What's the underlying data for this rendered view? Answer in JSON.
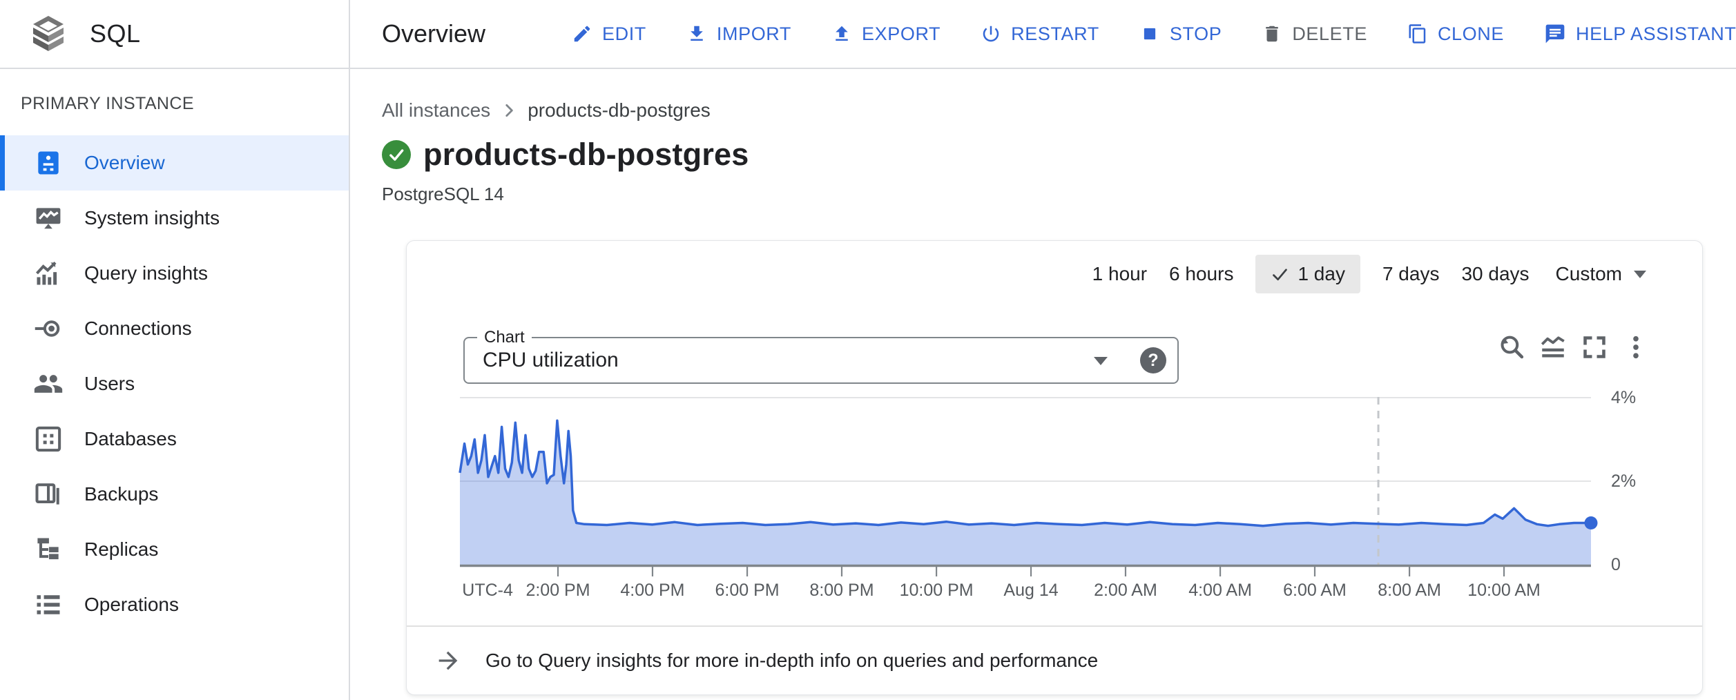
{
  "app": {
    "product": "SQL",
    "page_title": "Overview"
  },
  "topbar": {
    "accent_color": "#3367D6",
    "actions": [
      {
        "label": "EDIT",
        "icon": "pencil-icon"
      },
      {
        "label": "IMPORT",
        "icon": "import-icon"
      },
      {
        "label": "EXPORT",
        "icon": "export-icon"
      },
      {
        "label": "RESTART",
        "icon": "power-icon"
      },
      {
        "label": "STOP",
        "icon": "stop-icon"
      },
      {
        "label": "DELETE",
        "icon": "trash-icon",
        "disabled": true
      },
      {
        "label": "CLONE",
        "icon": "clone-icon"
      },
      {
        "label": "HELP ASSISTANT",
        "icon": "chat-icon"
      }
    ]
  },
  "sidebar": {
    "section_label": "PRIMARY INSTANCE",
    "selected_bg": "#E8F0FE",
    "selected_color": "#1967D2",
    "items": [
      {
        "label": "Overview",
        "icon": "instance-overview-icon",
        "selected": true
      },
      {
        "label": "System insights",
        "icon": "system-insights-icon"
      },
      {
        "label": "Query insights",
        "icon": "query-insights-icon"
      },
      {
        "label": "Connections",
        "icon": "connections-icon"
      },
      {
        "label": "Users",
        "icon": "users-icon"
      },
      {
        "label": "Databases",
        "icon": "databases-icon"
      },
      {
        "label": "Backups",
        "icon": "backups-icon"
      },
      {
        "label": "Replicas",
        "icon": "replicas-icon"
      },
      {
        "label": "Operations",
        "icon": "operations-icon"
      }
    ]
  },
  "content": {
    "breadcrumb": {
      "root": "All instances",
      "current": "products-db-postgres"
    },
    "instance": {
      "name": "products-db-postgres",
      "status": "running",
      "status_color": "#388E3C",
      "engine": "PostgreSQL 14"
    },
    "time_ranges": [
      {
        "label": "1 hour"
      },
      {
        "label": "6 hours"
      },
      {
        "label": "1 day",
        "selected": true
      },
      {
        "label": "7 days"
      },
      {
        "label": "30 days"
      },
      {
        "label": "Custom",
        "dropdown": true
      }
    ],
    "chart_select": {
      "label": "Chart",
      "value": "CPU utilization"
    },
    "chart_tools": [
      {
        "name": "reset-zoom"
      },
      {
        "name": "chart-type"
      },
      {
        "name": "fullscreen"
      },
      {
        "name": "more-options"
      }
    ],
    "footer_link": "Go to Query insights for more in-depth info on queries and performance"
  },
  "chart_data": {
    "type": "area",
    "title": "CPU utilization",
    "unit": "%",
    "ylim": [
      0,
      4.25
    ],
    "grid": true,
    "legend": "none",
    "grid_color": "#E3E4E6",
    "axis_color": "#80868B",
    "marker_color": "#C4C7CB",
    "now_marker_f": 0.812,
    "end_dot": true,
    "y_ticks": [
      {
        "label": "4%",
        "value": 4
      },
      {
        "label": "2%",
        "value": 2
      },
      {
        "label": "0",
        "value": 0
      }
    ],
    "x_ticks": [
      {
        "label": "UTC-4",
        "f": 0.002,
        "tick": false,
        "align": "left"
      },
      {
        "label": "2:00 PM",
        "f": 0.0867,
        "tick": true
      },
      {
        "label": "4:00 PM",
        "f": 0.1703,
        "tick": true
      },
      {
        "label": "6:00 PM",
        "f": 0.254,
        "tick": true
      },
      {
        "label": "8:00 PM",
        "f": 0.3376,
        "tick": true
      },
      {
        "label": "10:00 PM",
        "f": 0.4213,
        "tick": true
      },
      {
        "label": "Aug 14",
        "f": 0.5049,
        "tick": true
      },
      {
        "label": "2:00 AM",
        "f": 0.5885,
        "tick": true
      },
      {
        "label": "4:00 AM",
        "f": 0.6722,
        "tick": true
      },
      {
        "label": "6:00 AM",
        "f": 0.7558,
        "tick": true
      },
      {
        "label": "8:00 AM",
        "f": 0.8395,
        "tick": true
      },
      {
        "label": "10:00 AM",
        "f": 0.9231,
        "tick": true
      }
    ],
    "series": [
      {
        "name": "CPU utilization",
        "color": "#3367D6",
        "fill": "rgba(61,110,219,0.32)",
        "points": [
          [
            0.0,
            2.2
          ],
          [
            0.004,
            2.9
          ],
          [
            0.007,
            2.4
          ],
          [
            0.01,
            2.6
          ],
          [
            0.013,
            3.0
          ],
          [
            0.016,
            2.2
          ],
          [
            0.019,
            2.5
          ],
          [
            0.022,
            3.1
          ],
          [
            0.025,
            2.1
          ],
          [
            0.028,
            2.35
          ],
          [
            0.031,
            2.6
          ],
          [
            0.034,
            2.2
          ],
          [
            0.037,
            3.3
          ],
          [
            0.04,
            2.3
          ],
          [
            0.043,
            2.1
          ],
          [
            0.046,
            2.45
          ],
          [
            0.049,
            3.4
          ],
          [
            0.052,
            2.5
          ],
          [
            0.055,
            2.2
          ],
          [
            0.058,
            3.1
          ],
          [
            0.061,
            2.3
          ],
          [
            0.064,
            2.1
          ],
          [
            0.067,
            2.25
          ],
          [
            0.07,
            2.7
          ],
          [
            0.074,
            2.7
          ],
          [
            0.077,
            1.95
          ],
          [
            0.08,
            2.1
          ],
          [
            0.083,
            2.15
          ],
          [
            0.086,
            3.45
          ],
          [
            0.089,
            2.6
          ],
          [
            0.092,
            1.95
          ],
          [
            0.094,
            2.4
          ],
          [
            0.096,
            3.2
          ],
          [
            0.098,
            2.6
          ],
          [
            0.1,
            1.3
          ],
          [
            0.103,
            1.0
          ],
          [
            0.11,
            0.97
          ],
          [
            0.13,
            0.95
          ],
          [
            0.15,
            1.0
          ],
          [
            0.17,
            0.96
          ],
          [
            0.19,
            1.02
          ],
          [
            0.21,
            0.95
          ],
          [
            0.23,
            0.98
          ],
          [
            0.25,
            1.0
          ],
          [
            0.27,
            0.95
          ],
          [
            0.29,
            0.97
          ],
          [
            0.31,
            1.02
          ],
          [
            0.33,
            0.96
          ],
          [
            0.35,
            0.99
          ],
          [
            0.37,
            0.95
          ],
          [
            0.39,
            1.01
          ],
          [
            0.41,
            0.97
          ],
          [
            0.43,
            1.03
          ],
          [
            0.45,
            0.96
          ],
          [
            0.47,
            0.99
          ],
          [
            0.49,
            0.95
          ],
          [
            0.51,
            1.0
          ],
          [
            0.53,
            0.97
          ],
          [
            0.55,
            0.95
          ],
          [
            0.57,
            1.0
          ],
          [
            0.59,
            0.96
          ],
          [
            0.61,
            1.02
          ],
          [
            0.63,
            0.97
          ],
          [
            0.65,
            0.95
          ],
          [
            0.67,
            1.0
          ],
          [
            0.69,
            0.97
          ],
          [
            0.71,
            0.93
          ],
          [
            0.73,
            0.98
          ],
          [
            0.75,
            1.0
          ],
          [
            0.77,
            0.96
          ],
          [
            0.79,
            1.0
          ],
          [
            0.81,
            0.98
          ],
          [
            0.83,
            0.96
          ],
          [
            0.85,
            1.0
          ],
          [
            0.87,
            0.97
          ],
          [
            0.89,
            0.95
          ],
          [
            0.905,
            1.0
          ],
          [
            0.915,
            1.2
          ],
          [
            0.922,
            1.1
          ],
          [
            0.932,
            1.35
          ],
          [
            0.942,
            1.08
          ],
          [
            0.952,
            0.97
          ],
          [
            0.962,
            0.93
          ],
          [
            0.972,
            0.97
          ],
          [
            0.985,
            1.0
          ],
          [
            1.0,
            1.0
          ]
        ]
      }
    ]
  }
}
